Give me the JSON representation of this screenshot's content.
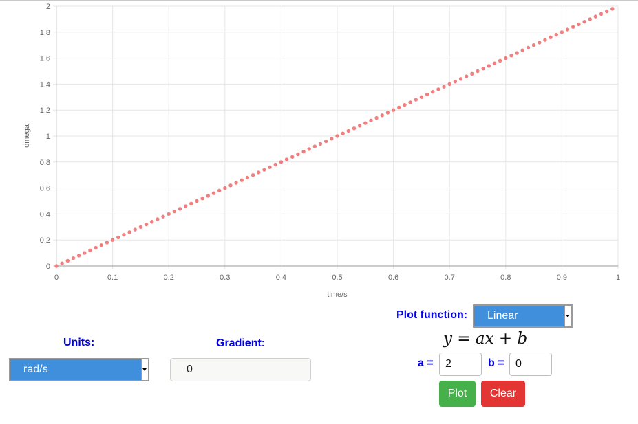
{
  "chart_data": {
    "type": "scatter",
    "title": "",
    "xlabel": "time/s",
    "ylabel": "omega",
    "xlim": [
      0,
      1
    ],
    "ylim": [
      0,
      2
    ],
    "x_ticks": [
      "0",
      "0.1",
      "0.2",
      "0.3",
      "0.4",
      "0.5",
      "0.6",
      "0.7",
      "0.8",
      "0.9",
      "1"
    ],
    "y_ticks": [
      "0",
      "0.2",
      "0.4",
      "0.6",
      "0.8",
      "1",
      "1.2",
      "1.4",
      "1.6",
      "1.8",
      "2"
    ],
    "grid": true,
    "point_color": "#f08080",
    "series": [
      {
        "x_start": 0,
        "x_end": 0.99,
        "x_step": 0.01,
        "function": "y = 2x"
      }
    ]
  },
  "units": {
    "label": "Units:",
    "selected": "rad/s"
  },
  "gradient": {
    "label": "Gradient:",
    "value": "0"
  },
  "plot_function": {
    "label": "Plot function:",
    "selected": "Linear",
    "formula": "y = ax + b"
  },
  "params": {
    "a_label": "a =",
    "a_value": "2",
    "b_label": "b =",
    "b_value": "0"
  },
  "buttons": {
    "plot": "Plot",
    "clear": "Clear"
  },
  "colors": {
    "select_bg": "#3f8fdc",
    "label": "#0000e6",
    "plot_button": "#46b04a",
    "clear_button": "#e43535"
  }
}
